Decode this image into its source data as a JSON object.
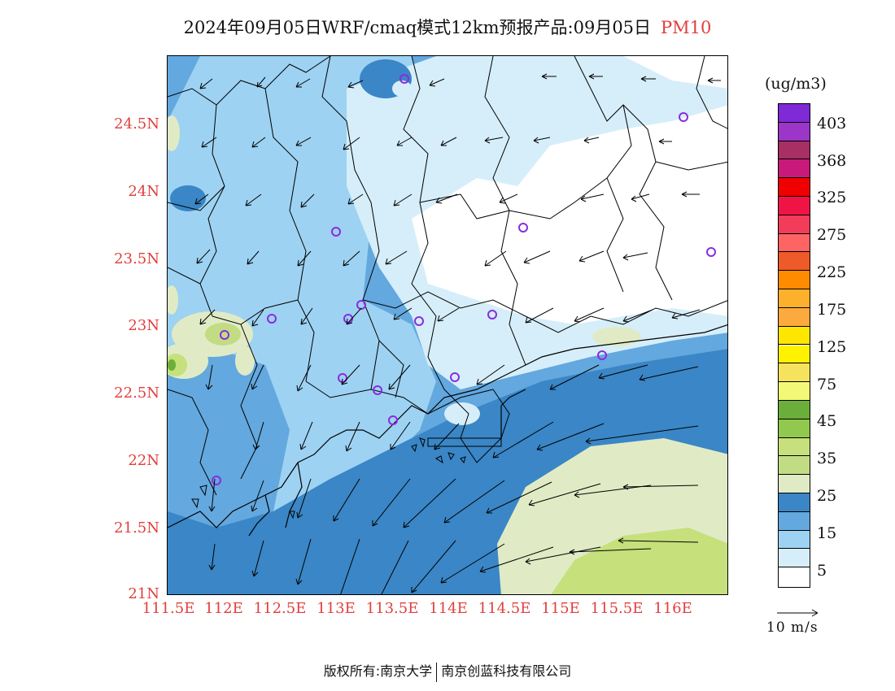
{
  "title": {
    "main": "2024年09月05日WRF/cmaq模式12km预报产品:09月05日",
    "pollutant": "PM10"
  },
  "axes": {
    "lat_labels": [
      "24.5N",
      "24N",
      "23.5N",
      "23N",
      "22.5N",
      "22N",
      "21.5N",
      "21N"
    ],
    "lon_labels": [
      "111.5E",
      "112E",
      "112.5E",
      "113E",
      "113.5E",
      "114E",
      "114.5E",
      "115E",
      "115.5E",
      "116E"
    ]
  },
  "colorbar": {
    "unit": "(ug/m3)",
    "labels": [
      "403",
      "368",
      "325",
      "275",
      "225",
      "175",
      "125",
      "75",
      "45",
      "35",
      "25",
      "15",
      "5"
    ],
    "colors": [
      "#7e2ad6",
      "#9c36c8",
      "#a62f63",
      "#c81a7a",
      "#f00000",
      "#f01446",
      "#f23c5a",
      "#ff6464",
      "#ee5a2a",
      "#ff8c00",
      "#fdb02c",
      "#fcaa3e",
      "#fee600",
      "#fff200",
      "#f5e35e",
      "#f4f877",
      "#6cae3a",
      "#92c84e",
      "#c6e07c",
      "#c2dc84",
      "#e0ebc6",
      "#3a86c6",
      "#63a8de",
      "#9dd2f2",
      "#d6eef9",
      "#ffffff"
    ]
  },
  "vector_legend": {
    "label": "10 m/s"
  },
  "copyright": {
    "owner1": "版权所有:南京大学",
    "owner2": "南京创蓝科技有限公司"
  }
}
